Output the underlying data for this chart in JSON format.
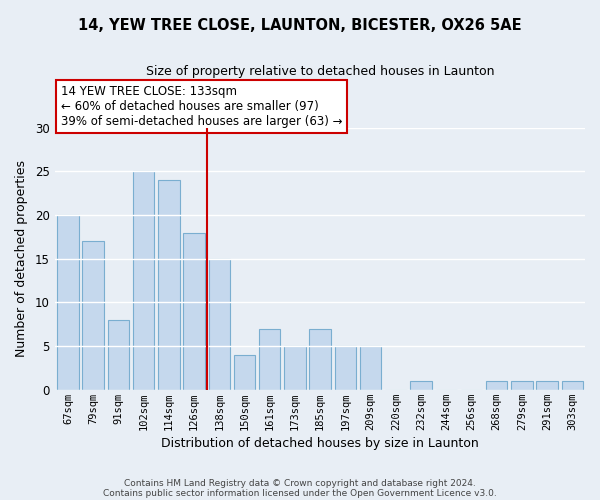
{
  "title": "14, YEW TREE CLOSE, LAUNTON, BICESTER, OX26 5AE",
  "subtitle": "Size of property relative to detached houses in Launton",
  "xlabel": "Distribution of detached houses by size in Launton",
  "ylabel": "Number of detached properties",
  "bar_labels": [
    "67sqm",
    "79sqm",
    "91sqm",
    "102sqm",
    "114sqm",
    "126sqm",
    "138sqm",
    "150sqm",
    "161sqm",
    "173sqm",
    "185sqm",
    "197sqm",
    "209sqm",
    "220sqm",
    "232sqm",
    "244sqm",
    "256sqm",
    "268sqm",
    "279sqm",
    "291sqm",
    "303sqm"
  ],
  "bar_values": [
    20,
    17,
    8,
    25,
    24,
    18,
    15,
    4,
    7,
    5,
    7,
    5,
    5,
    0,
    1,
    0,
    0,
    1,
    1,
    1,
    1
  ],
  "bar_color": "#c5d8ed",
  "bar_edge_color": "#7aaed0",
  "vline_x": 5.5,
  "vline_color": "#cc0000",
  "annotation_text": "14 YEW TREE CLOSE: 133sqm\n← 60% of detached houses are smaller (97)\n39% of semi-detached houses are larger (63) →",
  "annotation_box_color": "#ffffff",
  "annotation_box_edge": "#cc0000",
  "ylim": [
    0,
    30
  ],
  "yticks": [
    0,
    5,
    10,
    15,
    20,
    25,
    30
  ],
  "footer_line1": "Contains HM Land Registry data © Crown copyright and database right 2024.",
  "footer_line2": "Contains public sector information licensed under the Open Government Licence v3.0.",
  "bg_color": "#e8eef5",
  "grid_color": "#ffffff"
}
